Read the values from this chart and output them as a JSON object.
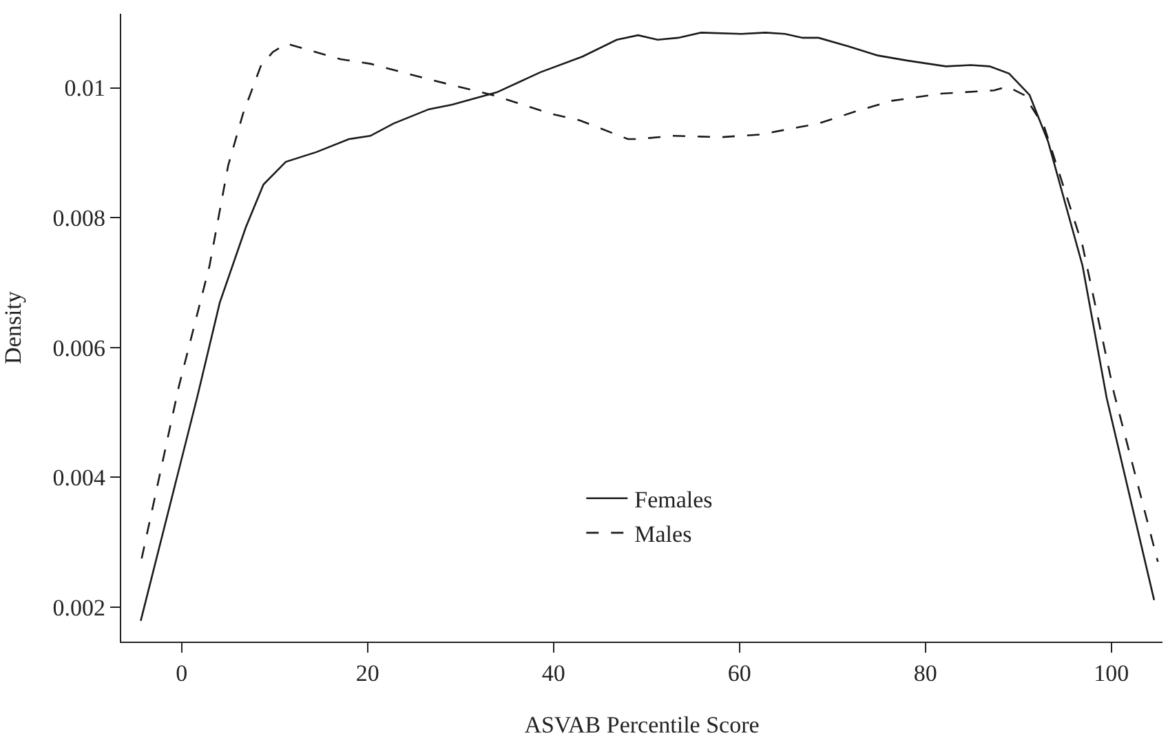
{
  "chart_data": {
    "type": "line",
    "xlabel": "ASVAB Percentile Score",
    "ylabel": "Density",
    "xlim": [
      -6.5,
      105.5
    ],
    "xticks": [
      0,
      20,
      40,
      60,
      80,
      100
    ],
    "ylim": [
      0.00147,
      0.01114
    ],
    "yticks": [
      0.002,
      0.004,
      0.006,
      0.008,
      0.01
    ],
    "legend": "bottom",
    "marker": "none",
    "series": [
      {
        "name": "Females",
        "color": "#1a1a1a",
        "line_style": "solid",
        "x": [
          -4.4,
          1.7,
          4.1,
          6.9,
          8.8,
          11.2,
          14.5,
          18.0,
          20.3,
          22.8,
          26.6,
          29.1,
          33.9,
          38.6,
          43.1,
          46.8,
          49.1,
          51.2,
          53.4,
          55.9,
          60.2,
          62.8,
          64.9,
          66.8,
          68.5,
          71.7,
          74.8,
          78.0,
          82.2,
          84.9,
          86.9,
          89.0,
          91.2,
          93.2,
          96.9,
          99.5,
          104.6
        ],
        "values": [
          0.00179,
          0.00525,
          0.00669,
          0.00785,
          0.00851,
          0.00886,
          0.00901,
          0.00921,
          0.00926,
          0.00945,
          0.00967,
          0.00974,
          0.00993,
          0.01024,
          0.01048,
          0.01074,
          0.01081,
          0.01074,
          0.01077,
          0.01085,
          0.01083,
          0.01085,
          0.01083,
          0.01077,
          0.01077,
          0.01064,
          0.0105,
          0.01042,
          0.01033,
          0.01035,
          0.01033,
          0.01022,
          0.00989,
          0.00917,
          0.00726,
          0.00522,
          0.00211
        ]
      },
      {
        "name": "Males",
        "color": "#1a1a1a",
        "line_style": "dashed",
        "x": [
          -4.3,
          -0.3,
          3.0,
          5.0,
          6.6,
          8.5,
          9.8,
          11.3,
          17.1,
          20.3,
          26.6,
          33.4,
          39.7,
          42.8,
          48.0,
          49.1,
          52.8,
          58.1,
          62.2,
          68.5,
          72.8,
          76.4,
          81.7,
          87.4,
          88.8,
          90.6,
          92.8,
          96.9,
          100.3,
          105.0
        ],
        "values": [
          0.00275,
          0.0054,
          0.00726,
          0.0088,
          0.0096,
          0.01033,
          0.01055,
          0.01068,
          0.01044,
          0.01037,
          0.01013,
          0.00989,
          0.0096,
          0.0095,
          0.00921,
          0.00921,
          0.00926,
          0.00924,
          0.00928,
          0.00945,
          0.00965,
          0.0098,
          0.00991,
          0.00996,
          0.01002,
          0.00989,
          0.00939,
          0.00757,
          0.00529,
          0.0027
        ]
      }
    ]
  }
}
